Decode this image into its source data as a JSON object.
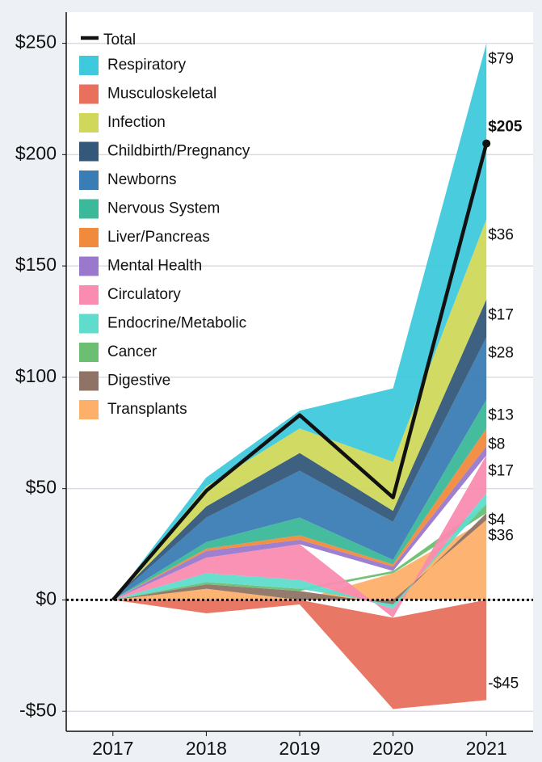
{
  "chart_data": {
    "type": "stacked_area",
    "categories": [
      "2017",
      "2018",
      "2019",
      "2020",
      "2021"
    ],
    "ylim": [
      -59,
      264
    ],
    "yticks": [
      {
        "value": -50,
        "label": "-$50"
      },
      {
        "value": 0,
        "label": "$0"
      },
      {
        "value": 50,
        "label": "$50"
      },
      {
        "value": 100,
        "label": "$100"
      },
      {
        "value": 150,
        "label": "$150"
      },
      {
        "value": 200,
        "label": "$200"
      },
      {
        "value": 250,
        "label": "$250"
      }
    ],
    "grid": true,
    "zero_line": true,
    "legend": "upper left",
    "total": {
      "name": "Total",
      "color": "#111111",
      "values": [
        0,
        49,
        83,
        46,
        205
      ],
      "value_labels": [
        null,
        null,
        null,
        null,
        "$205"
      ]
    },
    "series": [
      {
        "name": "Respiratory",
        "color": "#3ec9dc",
        "values": [
          0,
          4,
          8,
          33,
          79
        ],
        "value_labels": [
          null,
          null,
          null,
          null,
          "$79"
        ]
      },
      {
        "name": "Musculoskeletal",
        "color": "#e8705d",
        "values": [
          0,
          -6,
          -2,
          -41,
          -45
        ],
        "value_labels": [
          null,
          null,
          null,
          null,
          "-$45"
        ]
      },
      {
        "name": "Infection",
        "color": "#cfd85a",
        "values": [
          0,
          9,
          11,
          22,
          36
        ],
        "value_labels": [
          null,
          null,
          null,
          null,
          "$36"
        ]
      },
      {
        "name": "Childbirth/Pregnancy",
        "color": "#34587a",
        "values": [
          0,
          5,
          8,
          5,
          17
        ],
        "value_labels": [
          null,
          null,
          null,
          null,
          "$17"
        ]
      },
      {
        "name": "Newborns",
        "color": "#3a7db5",
        "values": [
          0,
          11,
          21,
          17,
          28
        ],
        "value_labels": [
          null,
          null,
          null,
          null,
          "$28"
        ]
      },
      {
        "name": "Nervous System",
        "color": "#3cb89a",
        "values": [
          0,
          3,
          8,
          2,
          13
        ],
        "value_labels": [
          null,
          null,
          null,
          null,
          "$13"
        ]
      },
      {
        "name": "Liver/Pancreas",
        "color": "#f08a3c",
        "values": [
          0,
          1,
          2,
          1,
          8
        ],
        "value_labels": [
          null,
          null,
          null,
          null,
          "$8"
        ]
      },
      {
        "name": "Mental Health",
        "color": "#9a78cc",
        "values": [
          0,
          3,
          2,
          2,
          4
        ]
      },
      {
        "name": "Circulatory",
        "color": "#f98cb0",
        "values": [
          0,
          7,
          16,
          -4,
          17
        ],
        "value_labels": [
          null,
          null,
          null,
          null,
          "$17"
        ]
      },
      {
        "name": "Endocrine/Metabolic",
        "color": "#5fdccb",
        "values": [
          0,
          4,
          4,
          -2,
          5
        ]
      },
      {
        "name": "Cancer",
        "color": "#6cbf72",
        "values": [
          0,
          1,
          1,
          1,
          4
        ],
        "value_labels": [
          null,
          null,
          null,
          null,
          "$4"
        ]
      },
      {
        "name": "Digestive",
        "color": "#8f7466",
        "values": [
          0,
          2,
          4,
          -2,
          3
        ]
      },
      {
        "name": "Transplants",
        "color": "#fdb06a",
        "values": [
          0,
          5,
          0,
          12,
          36
        ],
        "value_labels": [
          null,
          null,
          null,
          null,
          "$36"
        ]
      }
    ]
  }
}
